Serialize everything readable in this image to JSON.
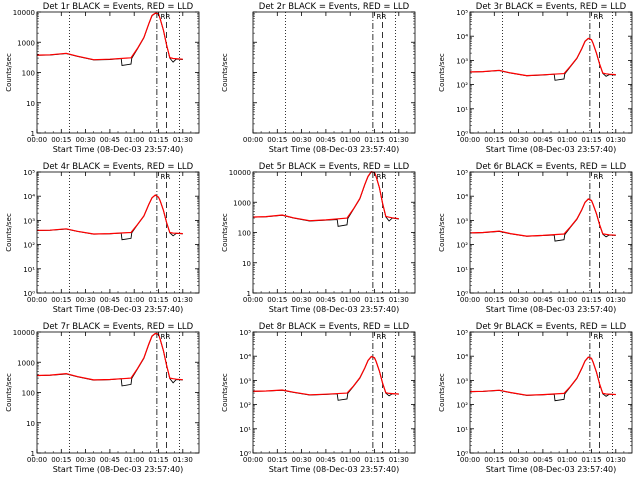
{
  "figure": {
    "x_tick_labels": [
      "00:00",
      "00:15",
      "00:30",
      "00:45",
      "01:00",
      "01:15",
      "01:30"
    ],
    "xlabel": "Start Time (08-Dec-03 23:57:40)",
    "ylabel": "Counts/sec",
    "colors": {
      "events": "#000000",
      "lld": "#ff0000",
      "frame": "#000000"
    },
    "marker_label": "R"
  },
  "chart_data": [
    {
      "type": "line",
      "title": "Det 1r BLACK = Events, RED = LLD",
      "scale": "log",
      "ylim": [
        1,
        10000
      ],
      "x_unit": "minutes since start",
      "xlim": [
        0,
        100
      ],
      "y_tick_labels": [
        "1",
        "10",
        "100",
        "1000",
        "10000"
      ],
      "vlines": {
        "dotted": [
          20,
          88
        ],
        "dashdot": [
          74
        ],
        "dashed": [
          80
        ]
      },
      "series": [
        {
          "name": "Events",
          "color": "#000000",
          "x": [
            0,
            8,
            18,
            25,
            35,
            45,
            52,
            52.5,
            58,
            58.5,
            62,
            66,
            69,
            71,
            73,
            75,
            76,
            78,
            80,
            82,
            84,
            86,
            90
          ],
          "y": [
            370,
            380,
            420,
            340,
            260,
            270,
            290,
            170,
            190,
            300,
            600,
            1400,
            4000,
            7500,
            9000,
            8500,
            6000,
            2500,
            800,
            300,
            220,
            280,
            270
          ]
        },
        {
          "name": "LLD",
          "color": "#ff0000",
          "x": [
            0,
            8,
            18,
            25,
            35,
            45,
            58,
            62,
            66,
            69,
            71,
            73,
            75,
            76,
            78,
            80,
            82,
            84,
            86,
            90
          ],
          "y": [
            375,
            385,
            430,
            345,
            265,
            275,
            305,
            620,
            1450,
            4100,
            7700,
            9200,
            8700,
            6100,
            2550,
            820,
            310,
            290,
            285,
            275
          ]
        }
      ]
    },
    {
      "type": "line",
      "title": "Det 2r BLACK = Events, RED = LLD",
      "scale": "log",
      "ylim": [
        1,
        10000
      ],
      "x_unit": "minutes since start",
      "xlim": [
        0,
        100
      ],
      "y_tick_labels": [],
      "vlines": {
        "dotted": [
          20,
          88
        ],
        "dashdot": [
          74
        ],
        "dashed": [
          80
        ]
      },
      "series": []
    },
    {
      "type": "line",
      "title": "Det 3r BLACK = Events, RED = LLD",
      "scale": "log",
      "ylim": [
        1,
        100000
      ],
      "x_unit": "minutes since start",
      "xlim": [
        0,
        100
      ],
      "y_tick_labels": [
        "10⁰",
        "10¹",
        "10²",
        "10³",
        "10⁴",
        "10⁵"
      ],
      "vlines": {
        "dotted": [
          20,
          88
        ],
        "dashdot": [
          74
        ],
        "dashed": [
          80
        ]
      },
      "series": [
        {
          "name": "Events",
          "color": "#000000",
          "x": [
            0,
            8,
            18,
            25,
            35,
            45,
            52,
            52.5,
            58,
            58.5,
            62,
            66,
            69,
            71,
            73,
            75,
            76,
            78,
            80,
            82,
            84,
            86,
            90
          ],
          "y": [
            330,
            340,
            380,
            300,
            230,
            250,
            270,
            150,
            170,
            280,
            550,
            1200,
            3000,
            6000,
            8000,
            7000,
            5000,
            2000,
            700,
            290,
            220,
            260,
            250
          ]
        },
        {
          "name": "LLD",
          "color": "#ff0000",
          "x": [
            0,
            8,
            18,
            25,
            35,
            45,
            58,
            62,
            66,
            69,
            71,
            73,
            75,
            76,
            78,
            80,
            82,
            84,
            86,
            90
          ],
          "y": [
            335,
            345,
            390,
            305,
            235,
            255,
            285,
            570,
            1250,
            3100,
            6200,
            8200,
            7200,
            5100,
            2050,
            720,
            300,
            280,
            270,
            260
          ]
        }
      ]
    },
    {
      "type": "line",
      "title": "Det 4r BLACK = Events, RED = LLD",
      "scale": "log",
      "ylim": [
        1,
        100000
      ],
      "x_unit": "minutes since start",
      "xlim": [
        0,
        100
      ],
      "y_tick_labels": [
        "10⁰",
        "10¹",
        "10²",
        "10³",
        "10⁴",
        "10⁵"
      ],
      "vlines": {
        "dotted": [
          20,
          88
        ],
        "dashdot": [
          74
        ],
        "dashed": [
          80
        ]
      },
      "series": [
        {
          "name": "Events",
          "color": "#000000",
          "x": [
            0,
            8,
            18,
            25,
            35,
            45,
            52,
            52.5,
            58,
            58.5,
            62,
            66,
            69,
            71,
            73,
            75,
            76,
            78,
            80,
            82,
            84,
            86,
            90
          ],
          "y": [
            380,
            390,
            440,
            350,
            270,
            280,
            300,
            160,
            180,
            310,
            650,
            1500,
            4500,
            8500,
            11000,
            9000,
            6500,
            2600,
            800,
            310,
            230,
            290,
            280
          ]
        },
        {
          "name": "LLD",
          "color": "#ff0000",
          "x": [
            0,
            8,
            18,
            25,
            35,
            45,
            58,
            62,
            66,
            69,
            71,
            73,
            75,
            76,
            78,
            80,
            82,
            84,
            86,
            90
          ],
          "y": [
            385,
            395,
            450,
            355,
            275,
            285,
            315,
            670,
            1550,
            4600,
            8700,
            11200,
            9200,
            6600,
            2650,
            820,
            320,
            300,
            295,
            285
          ]
        }
      ]
    },
    {
      "type": "line",
      "title": "Det 5r BLACK = Events, RED = LLD",
      "scale": "log",
      "ylim": [
        1,
        10000
      ],
      "x_unit": "minutes since start",
      "xlim": [
        0,
        100
      ],
      "y_tick_labels": [
        "1",
        "10",
        "100",
        "1000",
        "10000"
      ],
      "vlines": {
        "dotted": [
          20,
          88
        ],
        "dashdot": [
          74
        ],
        "dashed": [
          80
        ]
      },
      "series": [
        {
          "name": "Events",
          "color": "#000000",
          "x": [
            0,
            8,
            18,
            25,
            35,
            45,
            52,
            52.5,
            58,
            58.5,
            62,
            66,
            69,
            71,
            73,
            75,
            76,
            78,
            80,
            82,
            84,
            86,
            90
          ],
          "y": [
            320,
            330,
            370,
            300,
            240,
            255,
            270,
            160,
            180,
            290,
            580,
            1300,
            3800,
            7000,
            10000,
            9500,
            7000,
            3000,
            900,
            330,
            240,
            300,
            280
          ]
        },
        {
          "name": "LLD",
          "color": "#ff0000",
          "x": [
            0,
            8,
            18,
            25,
            35,
            45,
            58,
            62,
            66,
            69,
            71,
            73,
            75,
            76,
            78,
            80,
            82,
            84,
            86,
            90
          ],
          "y": [
            325,
            335,
            380,
            305,
            245,
            260,
            300,
            600,
            1350,
            3900,
            7200,
            10200,
            9700,
            7100,
            3050,
            920,
            340,
            320,
            305,
            285
          ]
        }
      ]
    },
    {
      "type": "line",
      "title": "Det 6r BLACK = Events, RED = LLD",
      "scale": "log",
      "ylim": [
        1,
        100000
      ],
      "x_unit": "minutes since start",
      "xlim": [
        0,
        100
      ],
      "y_tick_labels": [
        "10⁰",
        "10¹",
        "10²",
        "10³",
        "10⁴",
        "10⁵"
      ],
      "vlines": {
        "dotted": [
          20,
          88
        ],
        "dashdot": [
          74
        ],
        "dashed": [
          80
        ]
      },
      "series": [
        {
          "name": "Events",
          "color": "#000000",
          "x": [
            0,
            8,
            18,
            25,
            35,
            45,
            52,
            52.5,
            58,
            58.5,
            62,
            66,
            69,
            71,
            73,
            75,
            76,
            78,
            80,
            82,
            84,
            86,
            90
          ],
          "y": [
            300,
            310,
            350,
            280,
            220,
            235,
            250,
            140,
            160,
            260,
            520,
            1100,
            2700,
            5500,
            7500,
            6500,
            4500,
            1900,
            650,
            270,
            210,
            250,
            240
          ]
        },
        {
          "name": "LLD",
          "color": "#ff0000",
          "x": [
            0,
            8,
            18,
            25,
            35,
            45,
            58,
            62,
            66,
            69,
            71,
            73,
            75,
            76,
            78,
            80,
            82,
            84,
            86,
            90
          ],
          "y": [
            305,
            315,
            360,
            285,
            225,
            240,
            275,
            540,
            1150,
            2800,
            5600,
            7700,
            6700,
            4600,
            1950,
            670,
            280,
            265,
            255,
            245
          ]
        }
      ]
    },
    {
      "type": "line",
      "title": "Det 7r BLACK = Events, RED = LLD",
      "scale": "log",
      "ylim": [
        1,
        10000
      ],
      "x_unit": "minutes since start",
      "xlim": [
        0,
        100
      ],
      "y_tick_labels": [
        "1",
        "10",
        "100",
        "1000",
        "10000"
      ],
      "vlines": {
        "dotted": [
          20,
          88
        ],
        "dashdot": [
          74
        ],
        "dashed": [
          80
        ]
      },
      "series": [
        {
          "name": "Events",
          "color": "#000000",
          "x": [
            0,
            8,
            18,
            25,
            35,
            45,
            52,
            52.5,
            58,
            58.5,
            62,
            66,
            69,
            71,
            73,
            75,
            76,
            78,
            80,
            82,
            84,
            86,
            90
          ],
          "y": [
            360,
            370,
            410,
            330,
            255,
            265,
            285,
            165,
            185,
            295,
            590,
            1350,
            3900,
            7200,
            8800,
            8200,
            5800,
            2400,
            780,
            290,
            210,
            270,
            260
          ]
        },
        {
          "name": "LLD",
          "color": "#ff0000",
          "x": [
            0,
            8,
            18,
            25,
            35,
            45,
            58,
            62,
            66,
            69,
            71,
            73,
            75,
            76,
            78,
            80,
            82,
            84,
            86,
            90
          ],
          "y": [
            365,
            375,
            420,
            335,
            260,
            270,
            300,
            610,
            1400,
            4000,
            7400,
            9000,
            8400,
            5900,
            2450,
            800,
            300,
            285,
            275,
            265
          ]
        }
      ]
    },
    {
      "type": "line",
      "title": "Det 8r BLACK = Events, RED = LLD",
      "scale": "log",
      "ylim": [
        1,
        100000
      ],
      "x_unit": "minutes since start",
      "xlim": [
        0,
        100
      ],
      "y_tick_labels": [
        "10⁰",
        "10¹",
        "10²",
        "10³",
        "10⁴",
        "10⁵"
      ],
      "vlines": {
        "dotted": [
          20,
          88
        ],
        "dashdot": [
          74
        ],
        "dashed": [
          80
        ]
      },
      "series": [
        {
          "name": "Events",
          "color": "#000000",
          "x": [
            0,
            8,
            18,
            25,
            35,
            45,
            52,
            52.5,
            58,
            58.5,
            62,
            66,
            69,
            71,
            73,
            75,
            76,
            78,
            80,
            82,
            84,
            86,
            90
          ],
          "y": [
            350,
            360,
            390,
            320,
            250,
            265,
            280,
            150,
            170,
            290,
            560,
            1250,
            3200,
            6500,
            9500,
            8500,
            6000,
            2400,
            750,
            300,
            230,
            280,
            270
          ]
        },
        {
          "name": "LLD",
          "color": "#ff0000",
          "x": [
            0,
            8,
            18,
            25,
            35,
            45,
            58,
            62,
            66,
            69,
            71,
            73,
            75,
            76,
            78,
            80,
            82,
            84,
            86,
            90
          ],
          "y": [
            355,
            365,
            400,
            325,
            255,
            270,
            300,
            580,
            1300,
            3300,
            6700,
            9700,
            8700,
            6100,
            2450,
            770,
            310,
            290,
            285,
            275
          ]
        }
      ]
    },
    {
      "type": "line",
      "title": "Det 9r BLACK = Events, RED = LLD",
      "scale": "log",
      "ylim": [
        1,
        100000
      ],
      "x_unit": "minutes since start",
      "xlim": [
        0,
        100
      ],
      "y_tick_labels": [
        "10⁰",
        "10¹",
        "10²",
        "10³",
        "10⁴",
        "10⁵"
      ],
      "vlines": {
        "dotted": [
          20,
          88
        ],
        "dashdot": [
          74
        ],
        "dashed": [
          80
        ]
      },
      "series": [
        {
          "name": "Events",
          "color": "#000000",
          "x": [
            0,
            8,
            18,
            25,
            35,
            45,
            52,
            52.5,
            58,
            58.5,
            62,
            66,
            69,
            71,
            73,
            75,
            76,
            78,
            80,
            82,
            84,
            86,
            90
          ],
          "y": [
            340,
            350,
            385,
            310,
            240,
            255,
            270,
            145,
            165,
            280,
            540,
            1200,
            3100,
            6200,
            9000,
            8000,
            5600,
            2200,
            700,
            280,
            220,
            270,
            260
          ]
        },
        {
          "name": "LLD",
          "color": "#ff0000",
          "x": [
            0,
            8,
            18,
            25,
            35,
            45,
            58,
            62,
            66,
            69,
            71,
            73,
            75,
            76,
            78,
            80,
            82,
            84,
            86,
            90
          ],
          "y": [
            345,
            355,
            395,
            315,
            245,
            260,
            290,
            560,
            1250,
            3200,
            6400,
            9200,
            8200,
            5700,
            2250,
            720,
            290,
            275,
            268,
            262
          ]
        }
      ]
    }
  ]
}
